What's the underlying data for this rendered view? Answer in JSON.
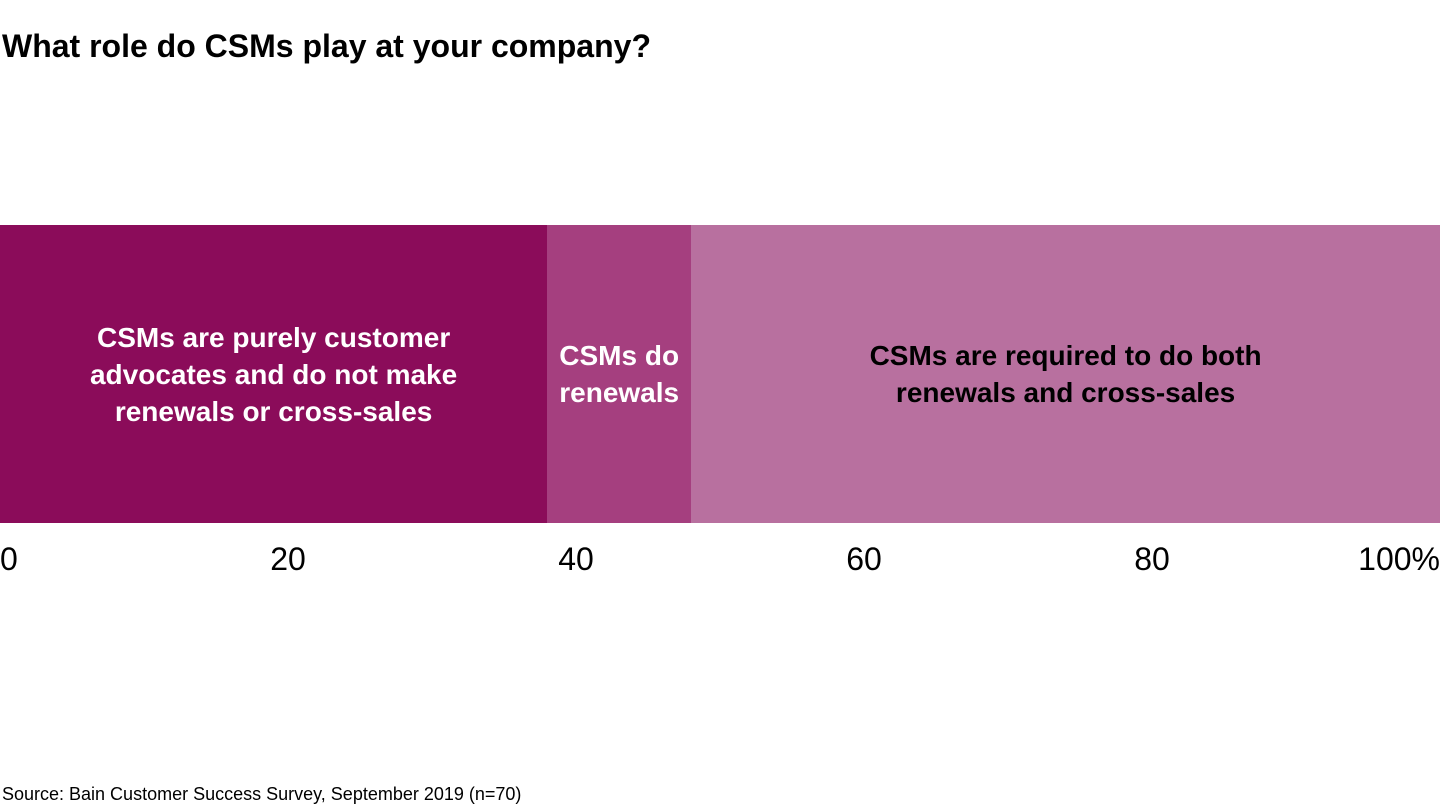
{
  "chart_data": {
    "type": "bar",
    "orientation": "horizontal",
    "stacked": true,
    "title": "What role do CSMs play at your company?",
    "source": "Source: Bain Customer Success Survey, September 2019 (n=70)",
    "unit": "percent",
    "xlim": [
      0,
      100
    ],
    "xticks": [
      "0",
      "20",
      "40",
      "60",
      "80",
      "100%"
    ],
    "grid": false,
    "legend": "none-labels-inside-segments",
    "series": [
      {
        "name": "CSMs are purely customer advocates and do not make renewals or cross-sales",
        "value": 38,
        "color": "#8B0C5A",
        "label_color": "#FFFFFF",
        "label_lines": [
          "CSMs are purely customer",
          "advocates and do not make",
          "renewals or cross-sales"
        ]
      },
      {
        "name": "CSMs do renewals",
        "value": 10,
        "color": "#A53F7F",
        "label_color": "#FFFFFF",
        "label_lines": [
          "CSMs do",
          "renewals"
        ]
      },
      {
        "name": "CSMs are required to do both renewals and cross-sales",
        "value": 52,
        "color": "#B8709F",
        "label_color": "#000000",
        "label_lines": [
          "CSMs are required to do both",
          "renewals and cross-sales"
        ]
      }
    ]
  }
}
